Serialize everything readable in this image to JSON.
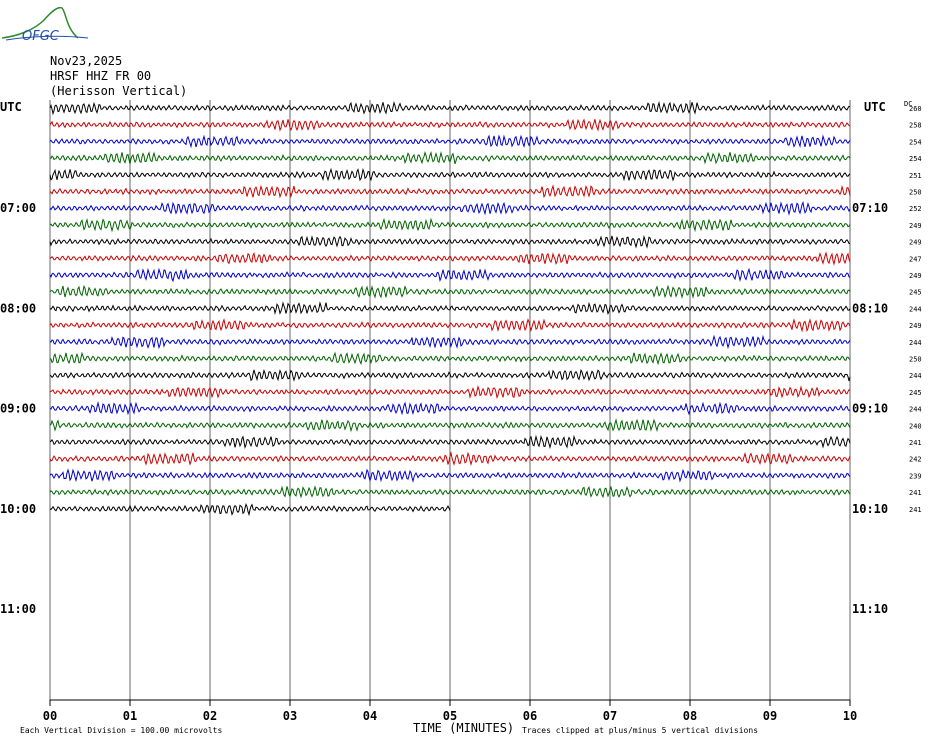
{
  "logo": {
    "text": "OFGC"
  },
  "header": {
    "date": "Nov23,2025",
    "station": "HRSF HHZ FR 00",
    "location": "(Herisson Vertical)"
  },
  "axis": {
    "left_label": "UTC",
    "right_label": "UTC",
    "dc_label": "DC",
    "xlabel": "TIME (MINUTES)",
    "x_ticks": [
      "00",
      "01",
      "02",
      "03",
      "04",
      "05",
      "06",
      "07",
      "08",
      "09",
      "10"
    ]
  },
  "footer": {
    "scale_note": "Each Vertical Division =  100.00 microvolts",
    "clip_note": "Traces clipped at plus/minus 5 vertical divisions"
  },
  "chart_data": {
    "type": "line",
    "title": "HRSF HHZ FR 00 (Herisson Vertical)",
    "date": "Nov23,2025",
    "xlabel": "TIME (MINUTES)",
    "xlim": [
      0,
      10
    ],
    "minutes_per_line": 10,
    "line_colors": [
      "#000000",
      "#cc0000",
      "#0000cc",
      "#006400"
    ],
    "hour_labels_left": [
      "07:00",
      "08:00",
      "09:00",
      "10:00",
      "11:00"
    ],
    "hour_labels_right": [
      "07:10",
      "08:10",
      "09:10",
      "10:10",
      "11:10"
    ],
    "dc_offsets": [
      260,
      258,
      254,
      254,
      251,
      250,
      252,
      249,
      249,
      247,
      249,
      245,
      244,
      249,
      244,
      250,
      244,
      245,
      244,
      240,
      241,
      242,
      239,
      241,
      241
    ],
    "last_trace_end_minute": 5
  }
}
